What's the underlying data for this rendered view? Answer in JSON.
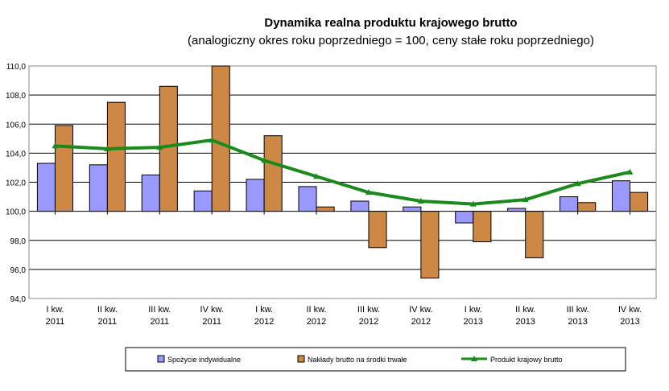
{
  "chart_data": {
    "type": "bar+line",
    "title": "Dynamika realna produktu krajowego brutto",
    "subtitle": "(analogiczny okres roku poprzedniego = 100, ceny stałe roku poprzedniego)",
    "categories": [
      [
        "I kw.",
        "2011"
      ],
      [
        "II kw.",
        "2011"
      ],
      [
        "III kw.",
        "2011"
      ],
      [
        "IV kw.",
        "2011"
      ],
      [
        "I kw.",
        "2012"
      ],
      [
        "II kw.",
        "2012"
      ],
      [
        "III kw.",
        "2012"
      ],
      [
        "IV kw.",
        "2012"
      ],
      [
        "I kw.",
        "2013"
      ],
      [
        "II kw.",
        "2013"
      ],
      [
        "III kw.",
        "2013"
      ],
      [
        "IV kw.",
        "2013"
      ]
    ],
    "ylim": [
      94,
      110
    ],
    "baseline": 100,
    "yticks": [
      "94,0",
      "96,0",
      "98,0",
      "100,0",
      "102,0",
      "104,0",
      "106,0",
      "108,0",
      "110,0"
    ],
    "grid": true,
    "legend_position": "bottom",
    "series": [
      {
        "name": "Spożycie indywidualne",
        "type": "bar",
        "color": "#9999ff",
        "values": [
          103.3,
          103.2,
          102.5,
          101.4,
          102.2,
          101.7,
          100.7,
          100.3,
          99.2,
          100.2,
          101.0,
          102.1
        ]
      },
      {
        "name": "Nakłady brutto na środki trwałe",
        "type": "bar",
        "color": "#cc8844",
        "values": [
          105.9,
          107.5,
          108.6,
          110.0,
          105.2,
          100.3,
          97.5,
          95.4,
          97.9,
          96.8,
          100.6,
          101.3
        ]
      },
      {
        "name": "Produkt krajowy brutto",
        "type": "line",
        "color": "#1a8a1a",
        "values": [
          104.5,
          104.3,
          104.4,
          104.9,
          103.5,
          102.4,
          101.3,
          100.7,
          100.5,
          100.8,
          101.9,
          102.7
        ]
      }
    ]
  }
}
